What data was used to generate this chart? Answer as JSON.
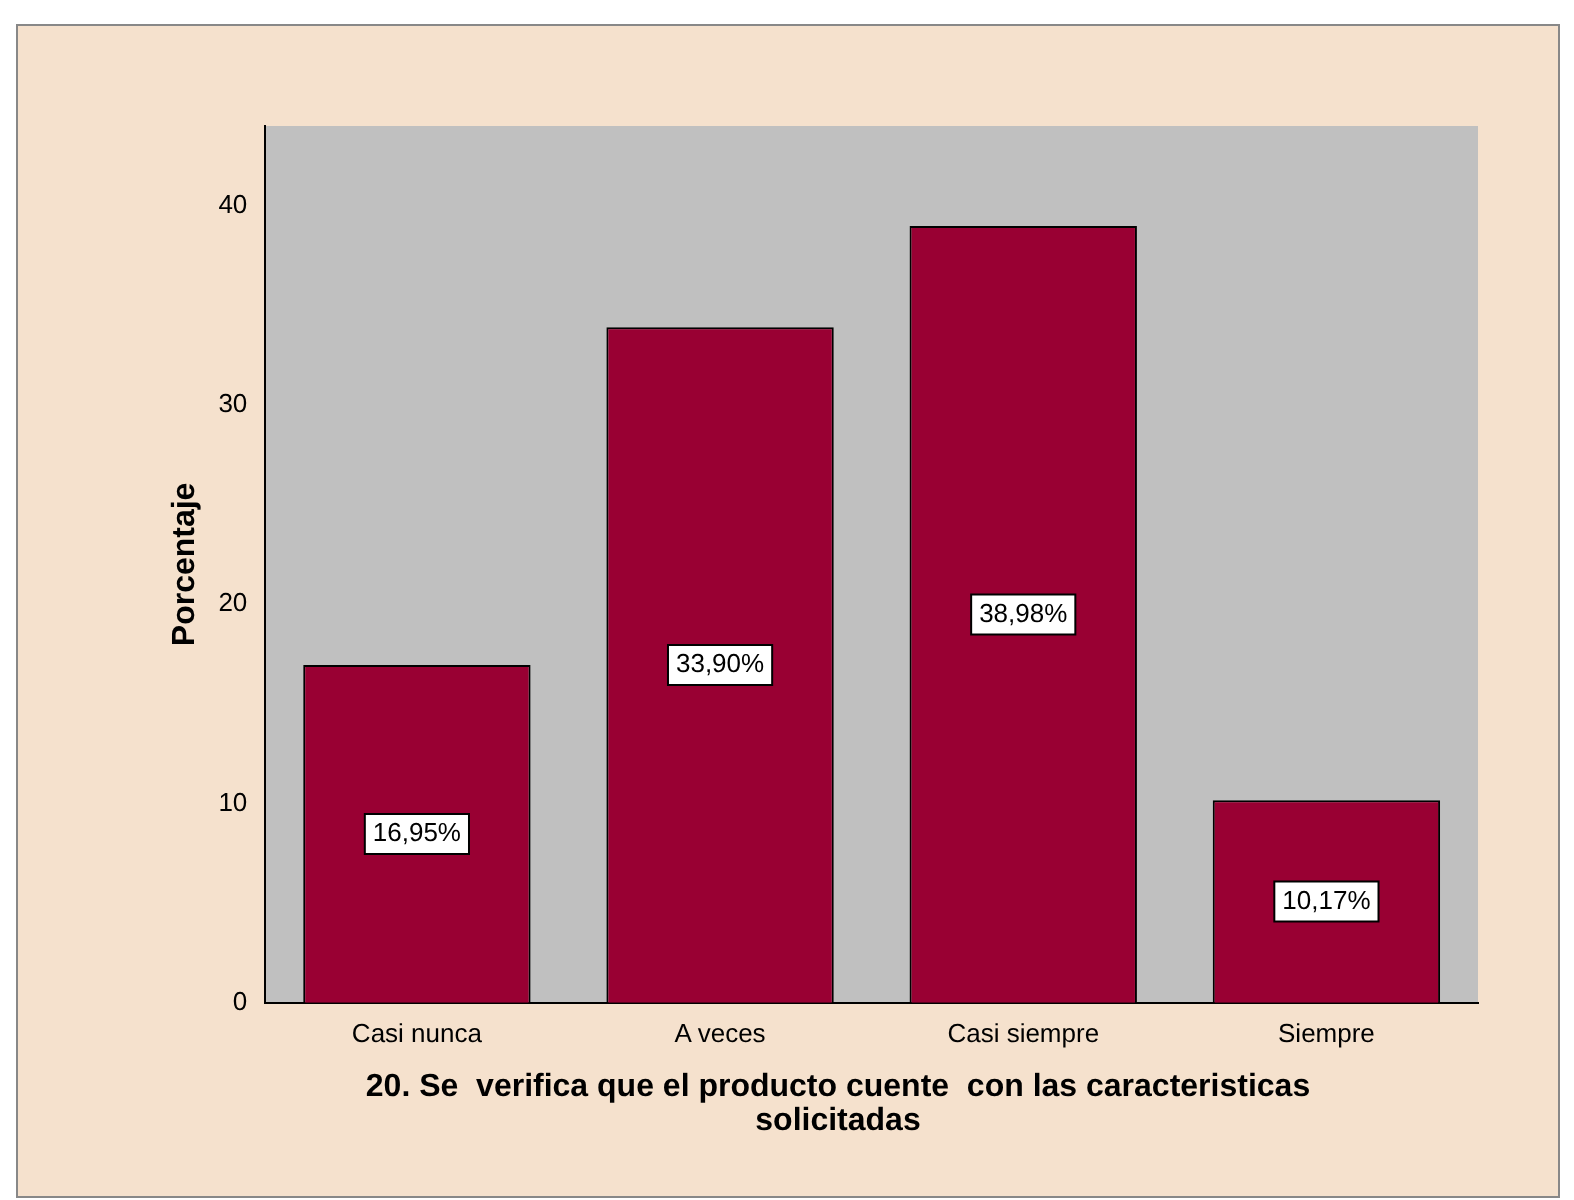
{
  "chart_data": {
    "type": "bar",
    "categories": [
      "Casi nunca",
      "A veces",
      "Casi siempre",
      "Siempre"
    ],
    "values": [
      16.95,
      33.9,
      38.98,
      10.17
    ],
    "value_labels": [
      "16,95%",
      "33,90%",
      "38,98%",
      "10,17%"
    ],
    "color": "#990033",
    "ylabel": "Porcentaje",
    "xlabel": "20. Se  verifica que el producto cuente  con las caracteristicas solicitadas",
    "ylim": [
      0,
      44
    ],
    "yticks": [
      0,
      10,
      20,
      30,
      40
    ],
    "grid": false,
    "legend": false
  }
}
